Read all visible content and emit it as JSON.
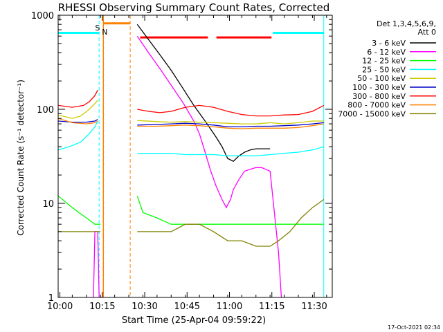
{
  "chart_data": {
    "type": "line",
    "title": "RHESSI Observing Summary Count Rates, Corrected",
    "xlabel": "Start Time (25-Apr-04 09:59:22)",
    "ylabel": "Corrected Count Rate (s⁻¹ detector⁻¹)",
    "yscale": "log",
    "ylim": [
      1,
      1000
    ],
    "xlim_minutes": [
      0,
      97
    ],
    "x_ticks": [
      "10:00",
      "10:15",
      "10:30",
      "10:45",
      "11:00",
      "11:15",
      "11:30"
    ],
    "x_tick_minutes": [
      0.63,
      15.63,
      30.63,
      45.63,
      60.63,
      75.63,
      90.63
    ],
    "y_ticks": [
      "1",
      "10",
      "100",
      "1000"
    ],
    "y_tick_values": [
      1,
      10,
      100,
      1000
    ],
    "legend_header": [
      "Det 1,3,4,5,6,9,",
      "Att 0"
    ],
    "legend_position": "right",
    "footer": "17-Oct-2021 02:34",
    "attenuator_label": "S",
    "night_label": "N",
    "series": [
      {
        "name": "3 - 6 keV",
        "color": "#000000",
        "points": [
          [
            28,
            800
          ],
          [
            32,
            550
          ],
          [
            36,
            380
          ],
          [
            40,
            260
          ],
          [
            44,
            170
          ],
          [
            48,
            110
          ],
          [
            52,
            75
          ],
          [
            56,
            50
          ],
          [
            58,
            40
          ],
          [
            60,
            30
          ],
          [
            62,
            28
          ],
          [
            64,
            32
          ],
          [
            66,
            35
          ],
          [
            68,
            37
          ],
          [
            70,
            38
          ],
          [
            72,
            38
          ],
          [
            75,
            38
          ]
        ]
      },
      {
        "name": "6 - 12 keV",
        "color": "#ff00ff",
        "points": [
          [
            -1,
            1
          ],
          [
            12.5,
            1
          ],
          [
            13,
            5
          ],
          [
            14,
            5
          ],
          [
            14.5,
            1
          ],
          [
            15.5,
            1
          ],
          [
            28,
            600
          ],
          [
            32,
            400
          ],
          [
            36,
            270
          ],
          [
            40,
            180
          ],
          [
            44,
            120
          ],
          [
            48,
            75
          ],
          [
            50,
            55
          ],
          [
            52,
            35
          ],
          [
            54,
            22
          ],
          [
            56,
            15
          ],
          [
            58,
            11
          ],
          [
            59.5,
            9
          ],
          [
            61,
            11
          ],
          [
            62,
            14
          ],
          [
            64,
            18
          ],
          [
            66,
            22
          ],
          [
            68,
            23
          ],
          [
            70,
            24
          ],
          [
            72,
            24
          ],
          [
            75,
            22
          ],
          [
            78,
            3
          ],
          [
            79,
            1
          ]
        ]
      },
      {
        "name": "12 - 25 keV",
        "color": "#00ff00",
        "points": [
          [
            0,
            12
          ],
          [
            5,
            9
          ],
          [
            10,
            7
          ],
          [
            13,
            6
          ],
          [
            15,
            6
          ],
          [
            28,
            12
          ],
          [
            30,
            8
          ],
          [
            35,
            7
          ],
          [
            40,
            6
          ],
          [
            45,
            6
          ],
          [
            50,
            6
          ],
          [
            55,
            6
          ],
          [
            60,
            6
          ],
          [
            65,
            6
          ],
          [
            70,
            6
          ],
          [
            75,
            6
          ],
          [
            80,
            6
          ],
          [
            85,
            6
          ],
          [
            90,
            6
          ],
          [
            94,
            6
          ]
        ]
      },
      {
        "name": "25 - 50 keV",
        "color": "#00ffff",
        "points": [
          [
            0,
            37
          ],
          [
            4,
            40
          ],
          [
            8,
            45
          ],
          [
            11,
            55
          ],
          [
            13,
            65
          ],
          [
            14,
            75
          ],
          [
            28,
            34
          ],
          [
            35,
            34
          ],
          [
            40,
            34
          ],
          [
            45,
            33
          ],
          [
            50,
            33
          ],
          [
            55,
            33
          ],
          [
            60,
            32
          ],
          [
            65,
            32
          ],
          [
            70,
            32
          ],
          [
            75,
            33
          ],
          [
            80,
            34
          ],
          [
            85,
            35
          ],
          [
            90,
            37
          ],
          [
            94,
            40
          ]
        ]
      },
      {
        "name": "50 - 100 keV",
        "color": "#cccc00",
        "points": [
          [
            0,
            87
          ],
          [
            5,
            80
          ],
          [
            8,
            85
          ],
          [
            11,
            100
          ],
          [
            13,
            115
          ],
          [
            14,
            125
          ],
          [
            28,
            76
          ],
          [
            35,
            74
          ],
          [
            40,
            73
          ],
          [
            45,
            74
          ],
          [
            50,
            73
          ],
          [
            55,
            72
          ],
          [
            60,
            71
          ],
          [
            65,
            70
          ],
          [
            70,
            70
          ],
          [
            75,
            72
          ],
          [
            80,
            70
          ],
          [
            85,
            72
          ],
          [
            90,
            75
          ],
          [
            94,
            75
          ]
        ]
      },
      {
        "name": "100 - 300 keV",
        "color": "#0000cc",
        "points": [
          [
            0,
            75
          ],
          [
            5,
            73
          ],
          [
            10,
            73
          ],
          [
            13,
            75
          ],
          [
            14,
            78
          ],
          [
            28,
            68
          ],
          [
            35,
            69
          ],
          [
            40,
            70
          ],
          [
            45,
            71
          ],
          [
            50,
            70
          ],
          [
            55,
            68
          ],
          [
            60,
            65
          ],
          [
            65,
            65
          ],
          [
            70,
            66
          ],
          [
            75,
            66
          ],
          [
            80,
            67
          ],
          [
            85,
            68
          ],
          [
            90,
            70
          ],
          [
            94,
            72
          ]
        ]
      },
      {
        "name": "300 - 800 keV",
        "color": "#ff0000",
        "points": [
          [
            0,
            110
          ],
          [
            5,
            105
          ],
          [
            9,
            110
          ],
          [
            11,
            120
          ],
          [
            13,
            140
          ],
          [
            14,
            160
          ],
          [
            28,
            100
          ],
          [
            32,
            95
          ],
          [
            36,
            92
          ],
          [
            40,
            95
          ],
          [
            45,
            105
          ],
          [
            50,
            110
          ],
          [
            55,
            105
          ],
          [
            60,
            95
          ],
          [
            65,
            88
          ],
          [
            70,
            85
          ],
          [
            75,
            85
          ],
          [
            80,
            87
          ],
          [
            85,
            88
          ],
          [
            90,
            95
          ],
          [
            94,
            110
          ]
        ]
      },
      {
        "name": "800 - 7000 keV",
        "color": "#ff8000",
        "points": [
          [
            0,
            80
          ],
          [
            5,
            72
          ],
          [
            10,
            70
          ],
          [
            13,
            72
          ],
          [
            14,
            75
          ],
          [
            28,
            66
          ],
          [
            35,
            66
          ],
          [
            40,
            67
          ],
          [
            45,
            68
          ],
          [
            50,
            67
          ],
          [
            55,
            65
          ],
          [
            60,
            63
          ],
          [
            65,
            62
          ],
          [
            70,
            63
          ],
          [
            75,
            63
          ],
          [
            80,
            63
          ],
          [
            85,
            64
          ],
          [
            90,
            67
          ],
          [
            94,
            70
          ]
        ]
      },
      {
        "name": "7000 - 15000 keV",
        "color": "#808000",
        "points": [
          [
            0,
            5
          ],
          [
            5,
            5
          ],
          [
            10,
            5
          ],
          [
            13,
            5
          ],
          [
            15,
            5
          ],
          [
            28,
            5
          ],
          [
            35,
            5
          ],
          [
            40,
            5
          ],
          [
            45,
            6
          ],
          [
            50,
            6
          ],
          [
            55,
            5
          ],
          [
            60,
            4
          ],
          [
            65,
            4
          ],
          [
            70,
            3.5
          ],
          [
            75,
            3.5
          ],
          [
            78,
            4
          ],
          [
            82,
            5
          ],
          [
            86,
            7
          ],
          [
            90,
            9
          ],
          [
            94,
            11
          ]
        ]
      }
    ],
    "attenuator_periods": [
      [
        16,
        25.5
      ]
    ],
    "saa_periods": [
      [
        -1,
        14.5
      ],
      [
        76,
        94
      ]
    ],
    "flare_periods": [
      [
        29,
        53
      ],
      [
        56,
        75.5
      ]
    ]
  }
}
